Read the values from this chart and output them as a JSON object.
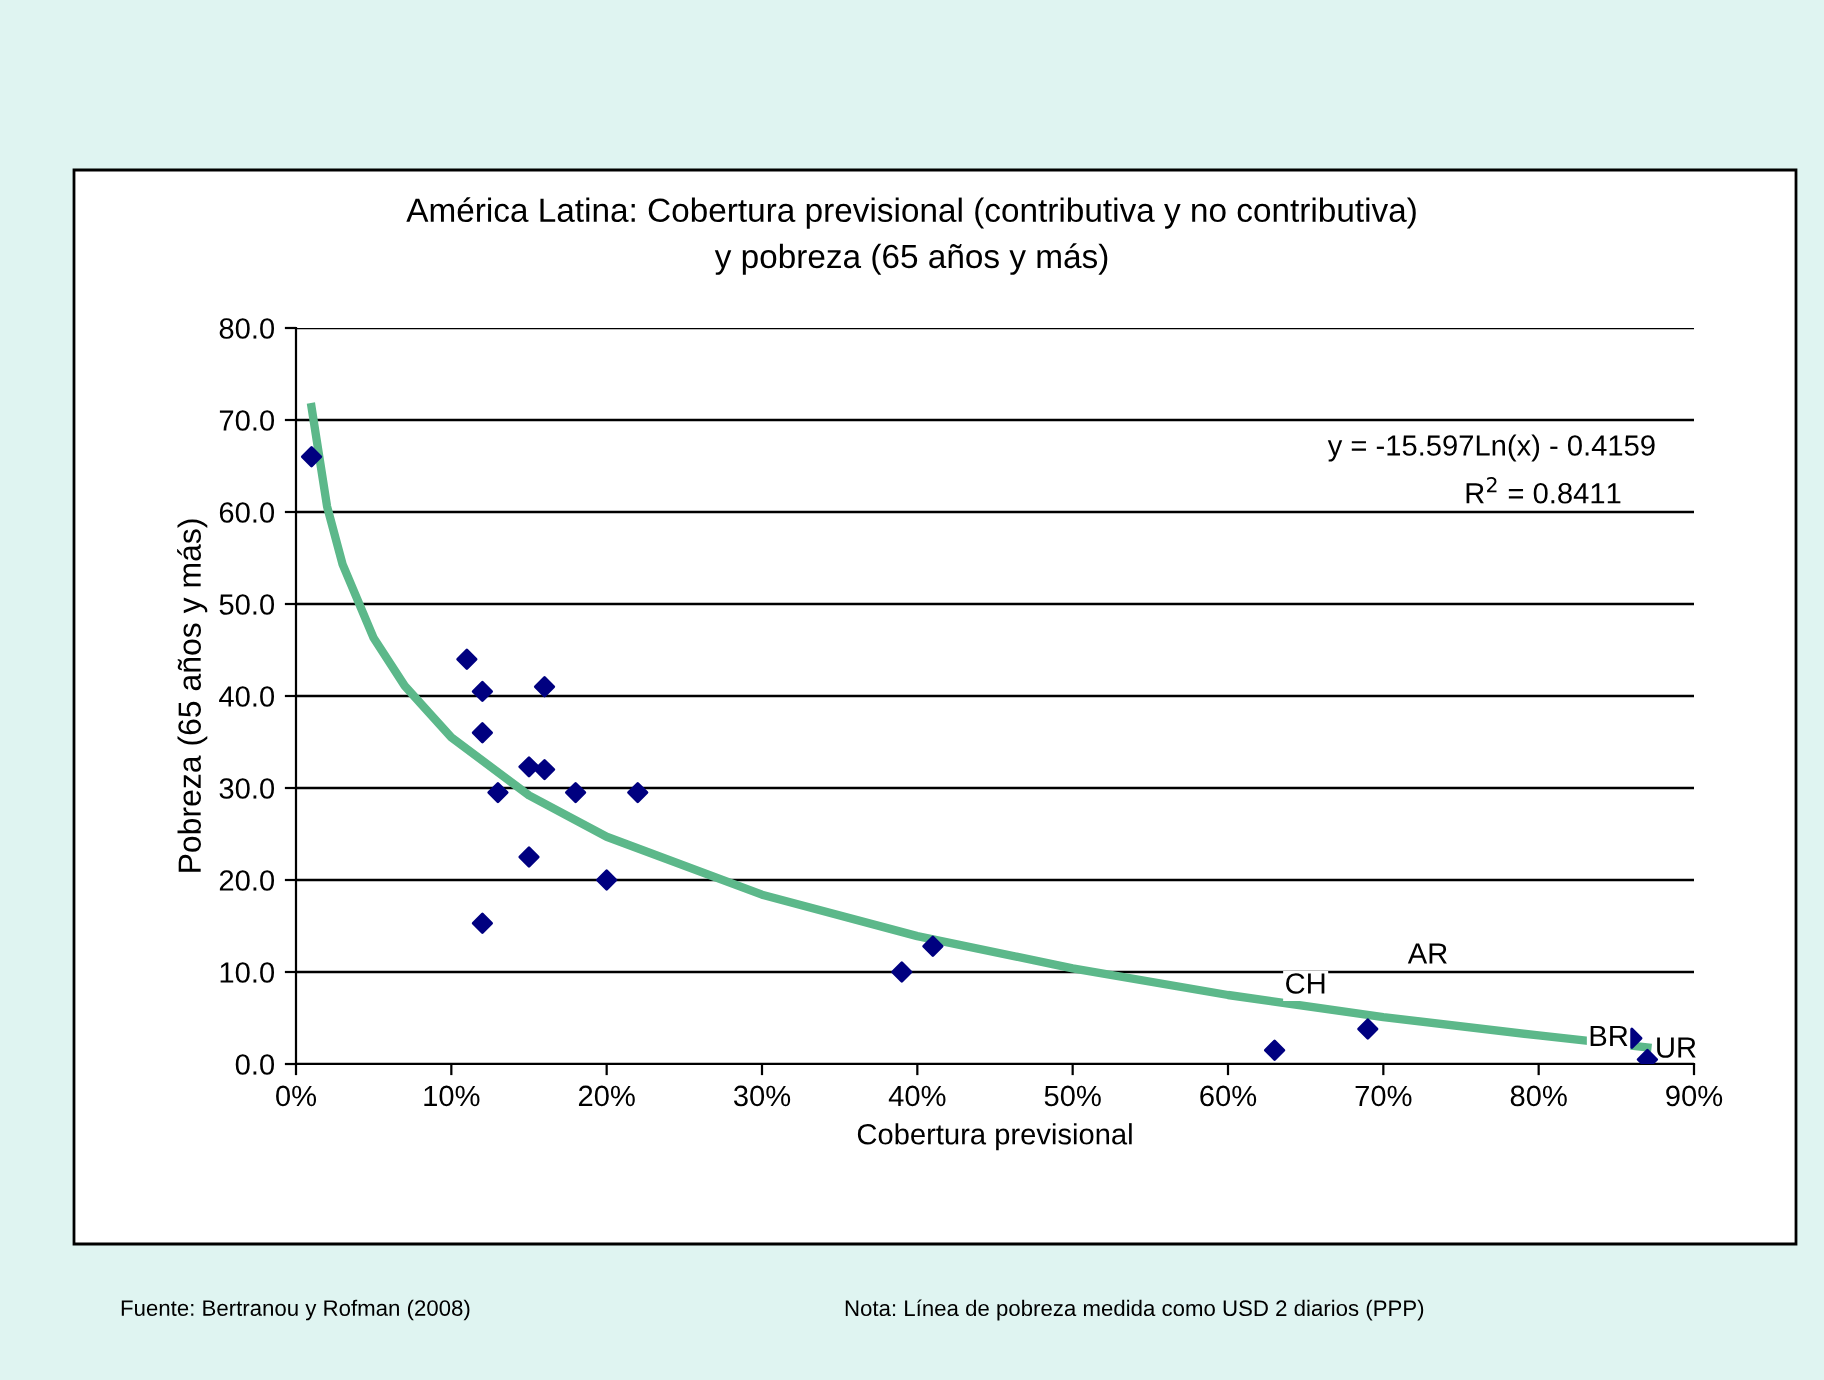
{
  "chart_data": {
    "type": "scatter",
    "title": "América Latina: Cobertura previsional (contributiva y no contributiva)\ny pobreza (65 años y más)",
    "xlabel": "Cobertura previsional",
    "ylabel": "Pobreza (65 años y más)",
    "xlim": [
      0,
      90
    ],
    "ylim": [
      0,
      80
    ],
    "xticks": [
      {
        "value": 0,
        "label": "0%"
      },
      {
        "value": 10,
        "label": "10%"
      },
      {
        "value": 20,
        "label": "20%"
      },
      {
        "value": 30,
        "label": "30%"
      },
      {
        "value": 40,
        "label": "40%"
      },
      {
        "value": 50,
        "label": "50%"
      },
      {
        "value": 60,
        "label": "60%"
      },
      {
        "value": 70,
        "label": "70%"
      },
      {
        "value": 80,
        "label": "80%"
      },
      {
        "value": 90,
        "label": "90%"
      }
    ],
    "yticks": [
      {
        "value": 0,
        "label": "0.0"
      },
      {
        "value": 10,
        "label": "10.0"
      },
      {
        "value": 20,
        "label": "20.0"
      },
      {
        "value": 30,
        "label": "30.0"
      },
      {
        "value": 40,
        "label": "40.0"
      },
      {
        "value": 50,
        "label": "50.0"
      },
      {
        "value": 60,
        "label": "60.0"
      },
      {
        "value": 70,
        "label": "70.0"
      },
      {
        "value": 80,
        "label": "80.0"
      }
    ],
    "grid": "y",
    "legend": false,
    "series": [
      {
        "marker": "diamond",
        "color": "#000080",
        "x": [
          1,
          11,
          12,
          12,
          13,
          15,
          16,
          16,
          15,
          12,
          18,
          20,
          22,
          39,
          41,
          63,
          69,
          86,
          87
        ],
        "values": [
          66,
          44,
          40.5,
          36,
          29.5,
          32.3,
          41,
          32,
          22.5,
          15.3,
          29.5,
          20,
          29.5,
          10,
          12.8,
          1.5,
          3.8,
          2.8,
          0.5
        ]
      },
      {
        "type": "line",
        "color": "#5cb88a",
        "x": [
          1,
          2,
          3,
          5,
          7,
          10,
          15,
          20,
          30,
          40,
          50,
          60,
          70,
          80,
          87
        ],
        "values": [
          71.4,
          60.6,
          54.3,
          46.3,
          41.1,
          35.5,
          29.2,
          24.7,
          18.4,
          13.9,
          10.4,
          7.5,
          5.1,
          3.1,
          1.8
        ]
      }
    ],
    "annotations": [
      "AR",
      {
        "text": "CH",
        "x": 65,
        "y": 7
      },
      {
        "text": "BR",
        "x": 84.5,
        "y": 1.3
      },
      "UR",
      "y = -15.597Ln(x) - 0.4159",
      "R$^{2}$ = 0.8411",
      "Fuente: Bertranou y Rofman (2008)",
      "Nota: Línea de pobreza medida como USD 2 diarios (PPP)"
    ]
  }
}
